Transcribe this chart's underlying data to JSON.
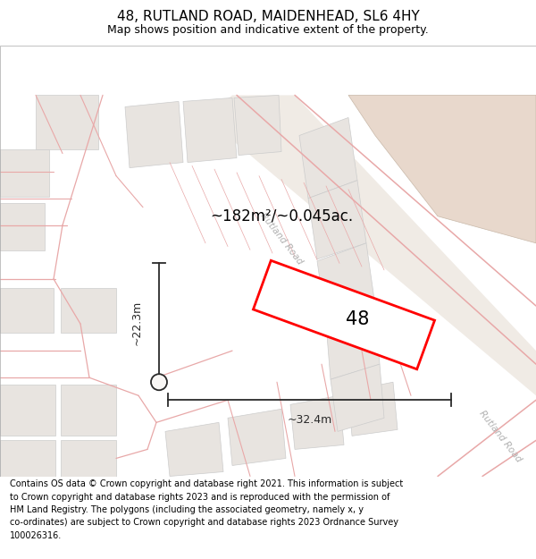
{
  "title": "48, RUTLAND ROAD, MAIDENHEAD, SL6 4HY",
  "subtitle": "Map shows position and indicative extent of the property.",
  "footer_text": "Contains OS data © Crown copyright and database right 2021. This information is subject\nto Crown copyright and database rights 2023 and is reproduced with the permission of\nHM Land Registry. The polygons (including the associated geometry, namely x, y\nco-ordinates) are subject to Crown copyright and database rights 2023 Ordnance Survey\n100026316.",
  "area_label": "~182m²/~0.045ac.",
  "number_label": "48",
  "dim_width": "~32.4m",
  "dim_height": "~22.3m",
  "road_label_upper": "Rutland Road",
  "road_label_lower": "Rutland Road",
  "map_bg": "#f9f7f5",
  "road_corridor_fill": "#f0ebe5",
  "brown_fill": "#e8d8cc",
  "building_fill": "#e8e4e0",
  "building_stroke": "#cccccc",
  "road_line_color": "#e8a8a8",
  "highlight_fill": "#ffffff",
  "highlight_stroke": "#ff0000",
  "dim_color": "#2a2a2a",
  "road_label_color": "#b0b0b0",
  "title_fs": 11,
  "subtitle_fs": 9,
  "footer_fs": 7.0,
  "area_fs": 12,
  "number_fs": 15,
  "dim_fs": 9,
  "road_label_fs": 7.5
}
